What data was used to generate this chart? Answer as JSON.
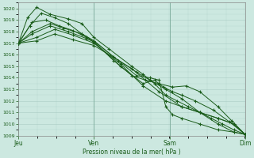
{
  "xlabel": "Pression niveau de la mer( hPa )",
  "ylim": [
    1009,
    1020.5
  ],
  "yticks": [
    1009,
    1010,
    1011,
    1012,
    1013,
    1014,
    1015,
    1016,
    1017,
    1018,
    1019,
    1020
  ],
  "day_labels": [
    "Jeu",
    "Ven",
    "Sam",
    "Dim"
  ],
  "day_positions": [
    0.0,
    0.333,
    0.667,
    1.0
  ],
  "bg_color": "#cce8e0",
  "grid_color": "#aaccc4",
  "line_color": "#1a5c1a",
  "lines": [
    {
      "x": [
        0.0,
        0.04,
        0.08,
        0.14,
        0.22,
        0.28,
        0.333,
        0.4,
        0.5,
        0.55,
        0.6,
        0.65,
        0.7,
        0.75,
        0.8,
        0.85,
        0.9,
        0.95,
        1.0
      ],
      "y": [
        1017.0,
        1019.2,
        1020.1,
        1019.5,
        1019.1,
        1018.7,
        1017.5,
        1016.5,
        1015.0,
        1014.3,
        1013.5,
        1012.5,
        1012.0,
        1011.5,
        1011.0,
        1010.5,
        1010.0,
        1009.5,
        1009.1
      ],
      "markers": [
        0,
        3,
        6,
        8,
        10,
        12,
        15,
        17
      ]
    },
    {
      "x": [
        0.0,
        0.05,
        0.1,
        0.16,
        0.22,
        0.28,
        0.333,
        0.42,
        0.52,
        0.58,
        0.65,
        0.72,
        0.8,
        0.88,
        0.95,
        1.0
      ],
      "y": [
        1017.0,
        1018.5,
        1019.6,
        1019.2,
        1018.7,
        1017.8,
        1017.2,
        1015.8,
        1014.5,
        1013.8,
        1013.0,
        1012.2,
        1011.0,
        1010.0,
        1009.3,
        1009.1
      ],
      "markers": [
        0,
        2,
        5,
        8,
        12,
        15
      ]
    },
    {
      "x": [
        0.0,
        0.06,
        0.12,
        0.18,
        0.24,
        0.3,
        0.333,
        0.42,
        0.5,
        0.56,
        0.62,
        0.68,
        0.74,
        0.8,
        0.88,
        0.94,
        1.0
      ],
      "y": [
        1017.0,
        1018.8,
        1019.0,
        1018.5,
        1018.1,
        1017.5,
        1017.1,
        1015.5,
        1014.2,
        1013.8,
        1013.5,
        1013.2,
        1013.3,
        1012.8,
        1011.5,
        1010.3,
        1009.1
      ],
      "markers": [
        0,
        2,
        5,
        9,
        13,
        16
      ]
    },
    {
      "x": [
        0.0,
        0.06,
        0.14,
        0.2,
        0.28,
        0.333,
        0.44,
        0.52,
        0.58,
        0.62,
        0.65,
        0.68,
        0.72,
        0.8,
        0.88,
        0.95,
        1.0
      ],
      "y": [
        1017.0,
        1018.0,
        1018.7,
        1018.3,
        1017.8,
        1017.2,
        1015.5,
        1014.2,
        1014.0,
        1013.8,
        1011.5,
        1010.8,
        1010.5,
        1010.0,
        1009.5,
        1009.3,
        1009.1
      ],
      "markers": [
        0,
        3,
        6,
        10,
        13,
        16
      ]
    },
    {
      "x": [
        0.0,
        0.06,
        0.14,
        0.22,
        0.3,
        0.333,
        0.45,
        0.55,
        0.6,
        0.64,
        0.68,
        0.72,
        0.78,
        0.86,
        0.93,
        1.0
      ],
      "y": [
        1017.0,
        1017.8,
        1018.5,
        1018.0,
        1017.4,
        1017.1,
        1015.0,
        1013.5,
        1013.8,
        1013.2,
        1012.8,
        1012.5,
        1012.0,
        1011.2,
        1010.2,
        1009.1
      ],
      "markers": [
        0,
        2,
        5,
        9,
        12,
        15
      ]
    },
    {
      "x": [
        0.0,
        0.08,
        0.16,
        0.24,
        0.333,
        0.45,
        0.55,
        0.65,
        0.72,
        0.8,
        0.88,
        0.95,
        1.0
      ],
      "y": [
        1017.0,
        1017.5,
        1018.2,
        1017.7,
        1017.0,
        1015.2,
        1013.3,
        1012.0,
        1011.5,
        1011.0,
        1010.5,
        1010.0,
        1009.1
      ],
      "markers": [
        0,
        3,
        6,
        9,
        12
      ]
    },
    {
      "x": [
        0.0,
        0.08,
        0.16,
        0.24,
        0.333,
        0.5,
        0.62,
        0.72,
        0.8,
        0.88,
        0.95,
        1.0
      ],
      "y": [
        1017.0,
        1017.2,
        1017.8,
        1017.3,
        1016.8,
        1014.8,
        1012.8,
        1011.5,
        1011.0,
        1010.5,
        1010.0,
        1009.1
      ],
      "markers": [
        0,
        3,
        6,
        9,
        11
      ]
    }
  ]
}
